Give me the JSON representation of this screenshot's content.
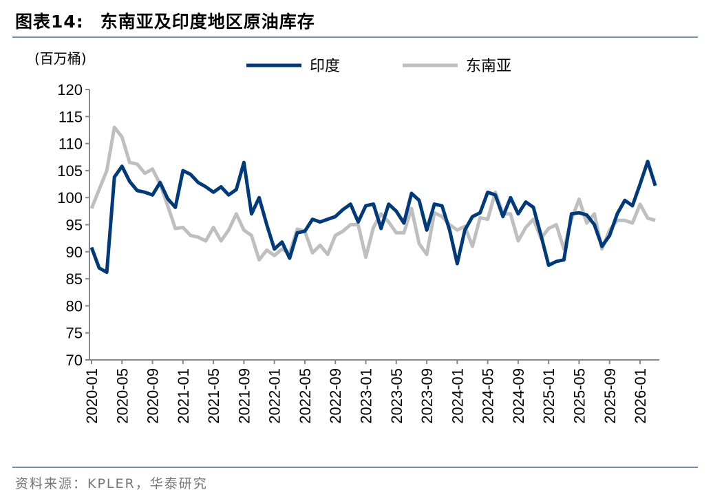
{
  "title_prefix": "图表14:",
  "title": "东南亚及印度地区原油库存",
  "source": "资料来源：KPLER，华泰研究",
  "chart_data": {
    "type": "line",
    "title": "东南亚及印度地区原油库存",
    "ylabel": "(百万桶)",
    "xlabel": "",
    "ylim": [
      70,
      120
    ],
    "yticks": [
      70,
      75,
      80,
      85,
      90,
      95,
      100,
      105,
      110,
      115,
      120
    ],
    "x_start": "2020-01",
    "xtick_labels": [
      "2020-01",
      "2020-05",
      "2020-09",
      "2021-01",
      "2021-05",
      "2021-09",
      "2022-01",
      "2022-05",
      "2022-09",
      "2023-01",
      "2023-05",
      "2023-09",
      "2024-01",
      "2024-05",
      "2024-09",
      "2025-01",
      "2025-05",
      "2025-09",
      "2026-01"
    ],
    "legend_position": "top",
    "series": [
      {
        "name": "印度",
        "color": "#003A7A",
        "values": [
          90.8,
          87,
          86.2,
          103.8,
          105.8,
          103,
          101.3,
          101,
          100.5,
          102.8,
          99.8,
          98.2,
          105,
          104.3,
          102.8,
          102,
          101,
          102,
          100.5,
          101.5,
          106.5,
          97,
          100,
          95,
          90.5,
          91.8,
          88.8,
          93.5,
          93.8,
          96,
          95.5,
          96,
          96.5,
          97.8,
          98.8,
          95.5,
          98.5,
          98.8,
          94.3,
          98.8,
          97.5,
          95.3,
          100.8,
          99.5,
          94,
          98.8,
          98.5,
          94,
          87.8,
          94,
          96.5,
          97.2,
          101,
          100.5,
          96.5,
          100,
          97,
          99.2,
          98.2,
          93,
          87.5,
          88.2,
          88.5,
          97,
          97.2,
          96.8,
          95,
          91,
          93,
          97,
          99.5,
          98.5,
          102.5,
          106.7,
          102.2
        ]
      },
      {
        "name": "东南亚",
        "color": "#BFBFBF",
        "values": [
          98,
          101.5,
          105,
          113,
          111.2,
          106.5,
          106.2,
          104.5,
          105.3,
          102.5,
          98.5,
          94.3,
          94.5,
          93,
          92.7,
          92,
          94.5,
          92,
          94,
          97,
          94,
          93,
          88.5,
          90.3,
          89.3,
          90.5,
          89.7,
          94.2,
          93.8,
          89.8,
          91.2,
          89.5,
          93,
          93.8,
          95,
          95,
          89,
          94.5,
          97,
          95.5,
          93.5,
          93.5,
          98,
          91.5,
          89.5,
          97.2,
          96.5,
          95,
          94,
          94.7,
          91,
          96.3,
          96,
          101,
          97,
          97,
          92,
          94.5,
          96,
          92.5,
          94.3,
          95,
          90.5,
          96,
          99.7,
          95.3,
          97,
          90.5,
          94,
          95.8,
          95.8,
          95.3,
          98.8,
          96.2,
          95.8
        ]
      }
    ]
  }
}
